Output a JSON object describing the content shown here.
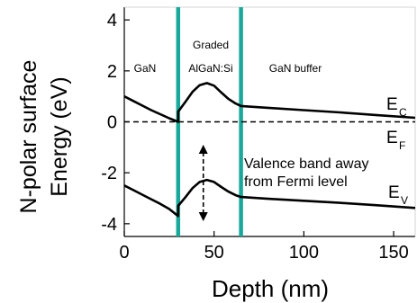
{
  "chart_data": {
    "type": "line",
    "ylabel_line1": "N-polar surface",
    "ylabel_line2": "Energy (eV)",
    "xlabel": "Depth (nm)",
    "xlim": [
      0,
      162
    ],
    "ylim": [
      -4.5,
      4.5
    ],
    "xticks": [
      0,
      50,
      100,
      150
    ],
    "yticks": [
      4,
      2,
      0,
      -2,
      -4
    ],
    "ytick_labels": [
      "4",
      "2",
      "0",
      "-2",
      "-4"
    ],
    "xtick_labels": [
      "0",
      "50",
      "100",
      "150"
    ],
    "interfaces": [
      30,
      65
    ],
    "interface_color": "#1aa89a",
    "region_labels": {
      "gan": "GaN",
      "graded_line1": "Graded",
      "graded_line2": "AlGaN:Si",
      "buffer": "GaN buffer"
    },
    "band_labels": {
      "ec_main": "E",
      "ec_sub": "C",
      "ef_main": "E",
      "ef_sub": "F",
      "ev_main": "E",
      "ev_sub": "V"
    },
    "annotation": {
      "line1": "Valence band away",
      "line2": "from Fermi level"
    },
    "series": [
      {
        "key": "conduction",
        "x": [
          0,
          5,
          10,
          15,
          20,
          25,
          30,
          30,
          34,
          38,
          42,
          46,
          50,
          54,
          58,
          62,
          65,
          65,
          80,
          100,
          120,
          140,
          162
        ],
        "y": [
          1.0,
          0.82,
          0.64,
          0.46,
          0.3,
          0.14,
          0.0,
          0.4,
          0.78,
          1.18,
          1.44,
          1.52,
          1.42,
          1.15,
          0.9,
          0.72,
          0.62,
          0.62,
          0.55,
          0.46,
          0.37,
          0.27,
          0.16
        ],
        "style": "solid"
      },
      {
        "key": "valence",
        "x": [
          0,
          5,
          10,
          15,
          20,
          25,
          30,
          30,
          34,
          38,
          42,
          46,
          50,
          54,
          58,
          62,
          65,
          65,
          80,
          100,
          120,
          140,
          162
        ],
        "y": [
          -2.5,
          -2.68,
          -2.86,
          -3.04,
          -3.22,
          -3.42,
          -3.7,
          -3.3,
          -2.96,
          -2.6,
          -2.36,
          -2.28,
          -2.36,
          -2.56,
          -2.74,
          -2.88,
          -2.95,
          -2.95,
          -3.02,
          -3.1,
          -3.18,
          -3.27,
          -3.38
        ],
        "style": "solid"
      },
      {
        "key": "fermi",
        "x": [
          0,
          162
        ],
        "y": [
          0,
          0
        ],
        "style": "dashed"
      }
    ],
    "double_arrow": {
      "x": 44,
      "y_from": -0.9,
      "y_to": -3.9
    }
  }
}
